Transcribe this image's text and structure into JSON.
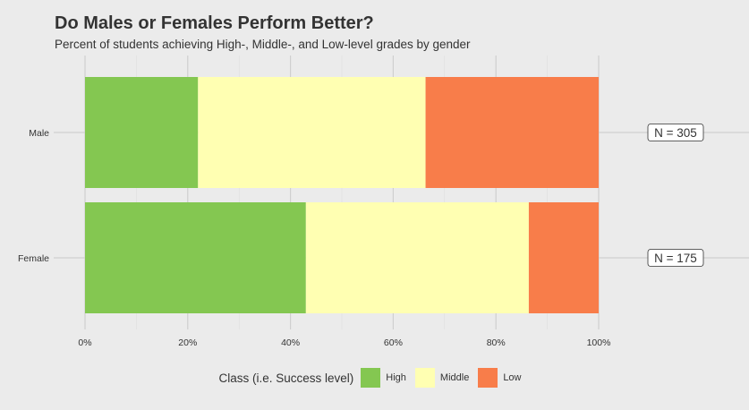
{
  "title": "Do Males or Females Perform Better?",
  "subtitle": "Percent of students achieving High-, Middle-, and Low-level grades by gender",
  "legend_title": "Class (i.e. Success level)",
  "chart_data": {
    "type": "bar",
    "orientation": "horizontal",
    "stacked": true,
    "categories": [
      "Male",
      "Female"
    ],
    "series": [
      {
        "name": "High",
        "color": "#84c751",
        "values": [
          22,
          43
        ]
      },
      {
        "name": "Middle",
        "color": "#ffffb2",
        "values": [
          44.3,
          43.4
        ]
      },
      {
        "name": "Low",
        "color": "#f87d4a",
        "values": [
          33.8,
          13.7
        ]
      }
    ],
    "x_ticks": [
      "0%",
      "20%",
      "40%",
      "60%",
      "80%",
      "100%"
    ],
    "xlim": [
      0,
      100
    ],
    "annotations": [
      "N = 305",
      "N = 175"
    ],
    "legend_position": "bottom",
    "grid": true
  }
}
